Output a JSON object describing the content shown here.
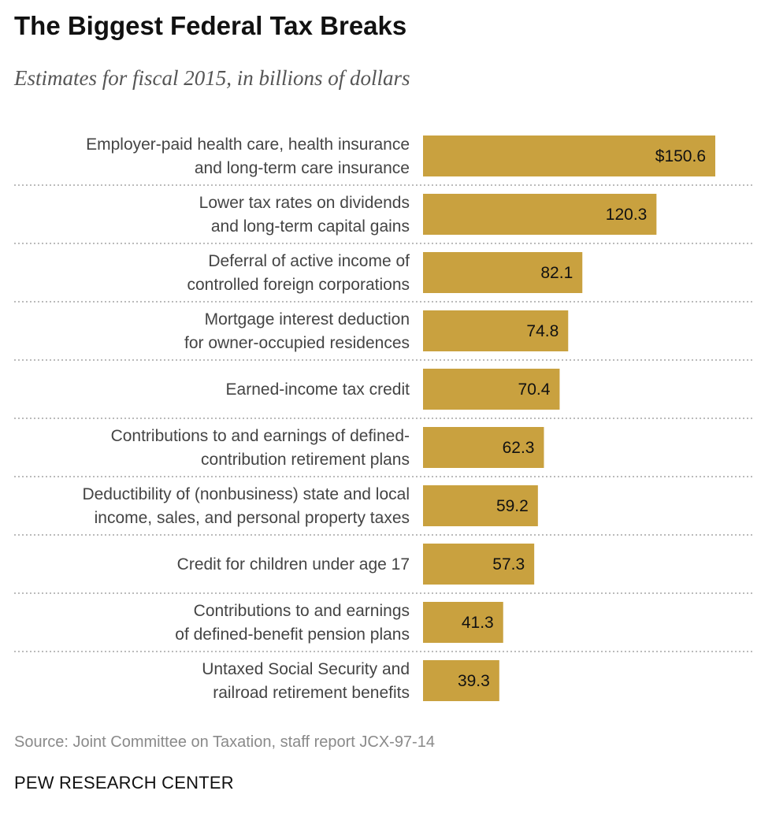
{
  "title": "The Biggest Federal Tax Breaks",
  "subtitle": "Estimates for fiscal 2015, in billions of dollars",
  "source": "Source: Joint Committee on Taxation, staff report JCX-97-14",
  "brand": "PEW RESEARCH CENTER",
  "colors": {
    "bar": "#c9a13f",
    "label_text": "#444444",
    "value_text": "#111111",
    "divider": "#bbbbbb"
  },
  "chart_data": {
    "type": "bar",
    "orientation": "horizontal",
    "title": "The Biggest Federal Tax Breaks",
    "subtitle": "Estimates for fiscal 2015, in billions of dollars",
    "xlabel": "",
    "ylabel": "",
    "xlim": [
      0,
      150.6
    ],
    "grid": false,
    "categories": [
      [
        "Employer-paid health care, health insurance",
        "and long-term care insurance"
      ],
      [
        "Lower tax rates on dividends",
        "and long-term capital gains"
      ],
      [
        "Deferral of active income of",
        "controlled foreign corporations"
      ],
      [
        "Mortgage interest deduction",
        "for owner-occupied residences"
      ],
      [
        "Earned-income tax credit"
      ],
      [
        "Contributions to and earnings of defined-",
        "contribution retirement plans"
      ],
      [
        "Deductibility of (nonbusiness) state and local",
        "income, sales, and personal property taxes"
      ],
      [
        "Credit for children under age 17"
      ],
      [
        "Contributions to and earnings",
        "of defined-benefit pension plans"
      ],
      [
        "Untaxed Social Security and",
        "railroad retirement benefits"
      ]
    ],
    "values": [
      150.6,
      120.3,
      82.1,
      74.8,
      70.4,
      62.3,
      59.2,
      57.3,
      41.3,
      39.3
    ],
    "value_labels": [
      "$150.6",
      "120.3",
      "82.1",
      "74.8",
      "70.4",
      "62.3",
      "59.2",
      "57.3",
      "41.3",
      "39.3"
    ]
  }
}
